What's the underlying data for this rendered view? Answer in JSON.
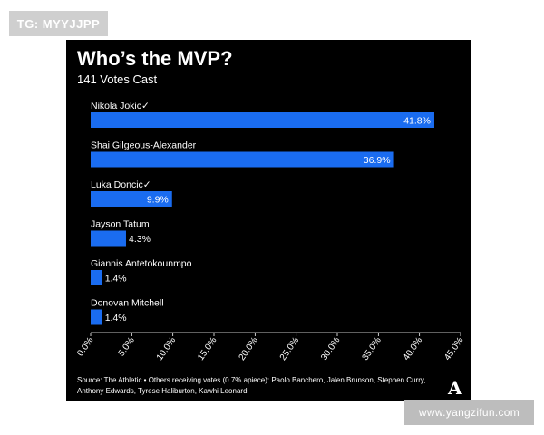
{
  "watermark_top": "TG: MYYJJPP",
  "watermark_bottom": "www.yangzifun.com",
  "logo": "A",
  "footer": {
    "source": "Source: The Athletic • Others receiving votes (0.7% apiece): Paolo Banchero, Jalen Brunson, Stephen Curry, Anthony Edwards, Tyrese Haliburton, Kawhi Leonard."
  },
  "colors": {
    "bar": "#1a6cf0",
    "background": "#000000",
    "text": "#ffffff"
  },
  "chart_data": {
    "type": "bar",
    "orientation": "horizontal",
    "title": "Who’s the MVP?",
    "subtitle": "141 Votes Cast",
    "categories": [
      "Nikola Jokic",
      "Shai Gilgeous-Alexander",
      "Luka Doncic",
      "Jayson Tatum",
      "Giannis Antetokounmpo",
      "Donovan Mitchell"
    ],
    "category_marks": [
      "✓",
      "",
      "✓",
      "",
      "",
      ""
    ],
    "values": [
      41.8,
      36.9,
      9.9,
      4.3,
      1.4,
      1.4
    ],
    "value_labels": [
      "41.8%",
      "36.9%",
      "9.9%",
      "4.3%",
      "1.4%",
      "1.4%"
    ],
    "xlim": [
      0,
      45
    ],
    "xticks": [
      0,
      5,
      10,
      15,
      20,
      25,
      30,
      35,
      40,
      45
    ],
    "xtick_labels": [
      "0.0%",
      "5.0%",
      "10.0%",
      "15.0%",
      "20.0%",
      "25.0%",
      "30.0%",
      "35.0%",
      "40.0%",
      "45.0%"
    ]
  }
}
